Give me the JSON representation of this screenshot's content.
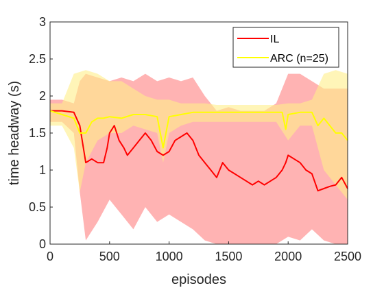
{
  "chart_data": {
    "type": "line",
    "xlabel": "episodes",
    "ylabel": "time headway (s)",
    "xlim": [
      0,
      2500
    ],
    "ylim": [
      0,
      3
    ],
    "x_ticks": [
      0,
      500,
      1000,
      1500,
      2000,
      2500
    ],
    "y_ticks": [
      0,
      0.5,
      1,
      1.5,
      2,
      2.5,
      3
    ],
    "grid": false,
    "legend_position": "top-right",
    "series": [
      {
        "name": "IL",
        "color": "#ff0000",
        "band_color": "#ff9999",
        "points": [
          [
            0,
            1.8
          ],
          [
            100,
            1.8
          ],
          [
            200,
            1.78
          ],
          [
            250,
            1.6
          ],
          [
            280,
            1.3
          ],
          [
            300,
            1.1
          ],
          [
            350,
            1.15
          ],
          [
            400,
            1.1
          ],
          [
            450,
            1.1
          ],
          [
            480,
            1.3
          ],
          [
            500,
            1.5
          ],
          [
            540,
            1.6
          ],
          [
            580,
            1.4
          ],
          [
            620,
            1.3
          ],
          [
            650,
            1.2
          ],
          [
            700,
            1.3
          ],
          [
            750,
            1.4
          ],
          [
            800,
            1.5
          ],
          [
            850,
            1.4
          ],
          [
            900,
            1.25
          ],
          [
            950,
            1.2
          ],
          [
            1000,
            1.25
          ],
          [
            1050,
            1.4
          ],
          [
            1100,
            1.45
          ],
          [
            1150,
            1.5
          ],
          [
            1200,
            1.4
          ],
          [
            1250,
            1.2
          ],
          [
            1300,
            1.1
          ],
          [
            1350,
            1.0
          ],
          [
            1400,
            0.9
          ],
          [
            1450,
            1.1
          ],
          [
            1500,
            1.0
          ],
          [
            1550,
            0.95
          ],
          [
            1600,
            0.9
          ],
          [
            1650,
            0.85
          ],
          [
            1700,
            0.8
          ],
          [
            1750,
            0.85
          ],
          [
            1800,
            0.8
          ],
          [
            1850,
            0.85
          ],
          [
            1900,
            0.9
          ],
          [
            1950,
            1.0
          ],
          [
            1980,
            1.1
          ],
          [
            2000,
            1.2
          ],
          [
            2050,
            1.15
          ],
          [
            2100,
            1.1
          ],
          [
            2150,
            1.0
          ],
          [
            2200,
            0.95
          ],
          [
            2250,
            0.72
          ],
          [
            2300,
            0.75
          ],
          [
            2350,
            0.78
          ],
          [
            2400,
            0.8
          ],
          [
            2450,
            0.9
          ],
          [
            2500,
            0.75
          ]
        ],
        "band_upper": [
          [
            0,
            1.95
          ],
          [
            100,
            1.95
          ],
          [
            200,
            1.9
          ],
          [
            250,
            2.2
          ],
          [
            300,
            2.3
          ],
          [
            400,
            2.25
          ],
          [
            500,
            2.2
          ],
          [
            600,
            2.25
          ],
          [
            700,
            2.2
          ],
          [
            800,
            2.3
          ],
          [
            900,
            2.2
          ],
          [
            1000,
            2.25
          ],
          [
            1100,
            2.2
          ],
          [
            1200,
            2.25
          ],
          [
            1300,
            2.0
          ],
          [
            1400,
            1.8
          ],
          [
            1500,
            1.85
          ],
          [
            1600,
            1.8
          ],
          [
            1700,
            1.8
          ],
          [
            1800,
            1.8
          ],
          [
            1900,
            1.9
          ],
          [
            2000,
            2.3
          ],
          [
            2100,
            2.3
          ],
          [
            2200,
            2.2
          ],
          [
            2300,
            2.1
          ],
          [
            2400,
            2.1
          ],
          [
            2500,
            2.1
          ]
        ],
        "band_lower": [
          [
            0,
            1.65
          ],
          [
            100,
            1.65
          ],
          [
            200,
            1.5
          ],
          [
            250,
            0.7
          ],
          [
            300,
            0.05
          ],
          [
            400,
            0.3
          ],
          [
            500,
            0.6
          ],
          [
            600,
            0.4
          ],
          [
            700,
            0.2
          ],
          [
            800,
            0.5
          ],
          [
            900,
            0.3
          ],
          [
            1000,
            0.4
          ],
          [
            1100,
            0.3
          ],
          [
            1200,
            0.2
          ],
          [
            1300,
            0.05
          ],
          [
            1400,
            0.0
          ],
          [
            1500,
            0.0
          ],
          [
            1600,
            0.0
          ],
          [
            1700,
            0.0
          ],
          [
            1800,
            0.0
          ],
          [
            1900,
            0.0
          ],
          [
            2000,
            0.1
          ],
          [
            2100,
            0.05
          ],
          [
            2200,
            0.2
          ],
          [
            2300,
            0.05
          ],
          [
            2400,
            0.0
          ],
          [
            2500,
            0.0
          ]
        ]
      },
      {
        "name": "ARC (n=25)",
        "color": "#ffff00",
        "band_color": "#ffee88",
        "points": [
          [
            0,
            1.8
          ],
          [
            100,
            1.75
          ],
          [
            200,
            1.7
          ],
          [
            250,
            1.5
          ],
          [
            300,
            1.5
          ],
          [
            350,
            1.65
          ],
          [
            400,
            1.7
          ],
          [
            450,
            1.7
          ],
          [
            500,
            1.72
          ],
          [
            600,
            1.7
          ],
          [
            700,
            1.75
          ],
          [
            800,
            1.75
          ],
          [
            900,
            1.72
          ],
          [
            950,
            1.3
          ],
          [
            1000,
            1.72
          ],
          [
            1100,
            1.75
          ],
          [
            1200,
            1.78
          ],
          [
            1300,
            1.78
          ],
          [
            1400,
            1.78
          ],
          [
            1500,
            1.78
          ],
          [
            1600,
            1.78
          ],
          [
            1700,
            1.78
          ],
          [
            1800,
            1.78
          ],
          [
            1900,
            1.78
          ],
          [
            1950,
            1.78
          ],
          [
            1980,
            1.55
          ],
          [
            2000,
            1.75
          ],
          [
            2100,
            1.78
          ],
          [
            2200,
            1.78
          ],
          [
            2250,
            1.6
          ],
          [
            2300,
            1.7
          ],
          [
            2350,
            1.6
          ],
          [
            2400,
            1.5
          ],
          [
            2450,
            1.5
          ],
          [
            2500,
            1.4
          ]
        ],
        "band_upper": [
          [
            0,
            1.9
          ],
          [
            100,
            1.9
          ],
          [
            200,
            2.3
          ],
          [
            300,
            2.35
          ],
          [
            400,
            2.3
          ],
          [
            500,
            2.2
          ],
          [
            600,
            2.2
          ],
          [
            700,
            2.1
          ],
          [
            800,
            2.0
          ],
          [
            900,
            1.95
          ],
          [
            1000,
            1.95
          ],
          [
            1100,
            1.9
          ],
          [
            1200,
            1.9
          ],
          [
            1300,
            1.9
          ],
          [
            1400,
            1.88
          ],
          [
            1500,
            1.88
          ],
          [
            1600,
            1.88
          ],
          [
            1700,
            1.88
          ],
          [
            1800,
            1.88
          ],
          [
            1900,
            1.88
          ],
          [
            2000,
            1.9
          ],
          [
            2100,
            1.9
          ],
          [
            2200,
            1.95
          ],
          [
            2300,
            2.3
          ],
          [
            2400,
            2.35
          ],
          [
            2500,
            2.3
          ]
        ],
        "band_lower": [
          [
            0,
            1.6
          ],
          [
            100,
            1.6
          ],
          [
            200,
            1.3
          ],
          [
            250,
            0.7
          ],
          [
            300,
            1.1
          ],
          [
            400,
            1.4
          ],
          [
            500,
            1.5
          ],
          [
            600,
            1.5
          ],
          [
            700,
            1.6
          ],
          [
            800,
            1.55
          ],
          [
            900,
            1.5
          ],
          [
            950,
            1.1
          ],
          [
            1000,
            1.5
          ],
          [
            1100,
            1.6
          ],
          [
            1200,
            1.65
          ],
          [
            1300,
            1.65
          ],
          [
            1400,
            1.65
          ],
          [
            1500,
            1.65
          ],
          [
            1600,
            1.65
          ],
          [
            1700,
            1.65
          ],
          [
            1800,
            1.65
          ],
          [
            1900,
            1.65
          ],
          [
            2000,
            1.4
          ],
          [
            2100,
            1.6
          ],
          [
            2200,
            1.6
          ],
          [
            2300,
            1.0
          ],
          [
            2400,
            0.8
          ],
          [
            2500,
            0.6
          ]
        ]
      }
    ]
  }
}
